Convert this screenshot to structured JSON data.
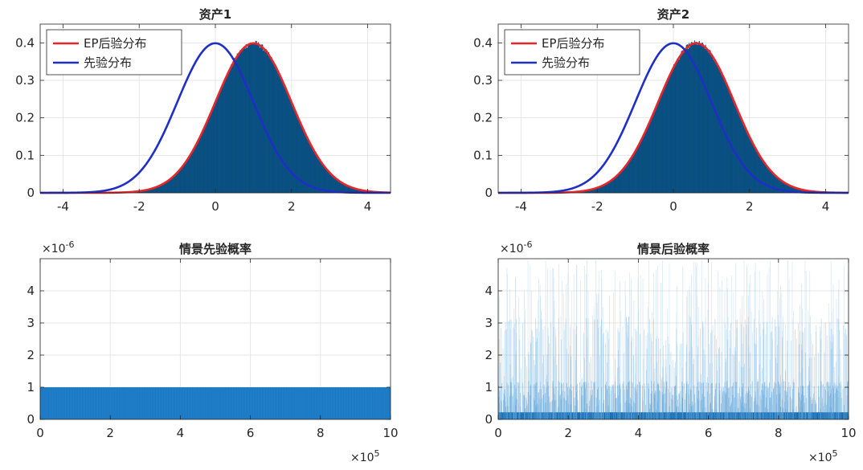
{
  "chart_data": [
    {
      "type": "area",
      "title": "资产1",
      "xlim": [
        -4.6,
        4.6
      ],
      "ylim": [
        0,
        0.45
      ],
      "xticks": [
        -4,
        -2,
        0,
        2,
        4
      ],
      "yticks": [
        0,
        0.1,
        0.2,
        0.3,
        0.4
      ],
      "legend": {
        "placement": "top-left",
        "entries": [
          "EP后验分布",
          "先验分布"
        ]
      },
      "series": [
        {
          "name": "EP后验分布",
          "kind": "normal-pdf",
          "mean": 1.0,
          "sd": 1.0,
          "color": "#e8262a",
          "histogram": true
        },
        {
          "name": "先验分布",
          "kind": "normal-pdf",
          "mean": 0.0,
          "sd": 1.0,
          "color": "#1f2fc6"
        }
      ],
      "histogram_color": "#0d5a8f"
    },
    {
      "type": "area",
      "title": "资产2",
      "xlim": [
        -4.6,
        4.6
      ],
      "ylim": [
        0,
        0.45
      ],
      "xticks": [
        -4,
        -2,
        0,
        2,
        4
      ],
      "yticks": [
        0,
        0.1,
        0.2,
        0.3,
        0.4
      ],
      "legend": {
        "placement": "top-left",
        "entries": [
          "EP后验分布",
          "先验分布"
        ]
      },
      "series": [
        {
          "name": "EP后验分布",
          "kind": "normal-pdf",
          "mean": 0.6,
          "sd": 1.0,
          "color": "#e8262a",
          "histogram": true
        },
        {
          "name": "先验分布",
          "kind": "normal-pdf",
          "mean": 0.0,
          "sd": 1.0,
          "color": "#1f2fc6"
        }
      ],
      "histogram_color": "#0d5a8f"
    },
    {
      "type": "bar",
      "title": "情景先验概率",
      "xlim": [
        0,
        10
      ],
      "ylim": [
        0,
        5
      ],
      "xticks": [
        0,
        2,
        4,
        6,
        8,
        10
      ],
      "yticks": [
        0,
        1,
        2,
        3,
        4
      ],
      "x_exponent": "×10^5",
      "y_exponent": "×10^-6",
      "uniform_value": 1,
      "color": "#1a78c2"
    },
    {
      "type": "bar",
      "title": "情景后验概率",
      "xlim": [
        0,
        10
      ],
      "ylim": [
        0,
        5
      ],
      "xticks": [
        0,
        2,
        4,
        6,
        8,
        10
      ],
      "yticks": [
        0,
        1,
        2,
        3,
        4
      ],
      "x_exponent": "×10^5",
      "y_exponent": "×10^-6",
      "color": "#1a78c2",
      "note": "dense spikes"
    }
  ]
}
